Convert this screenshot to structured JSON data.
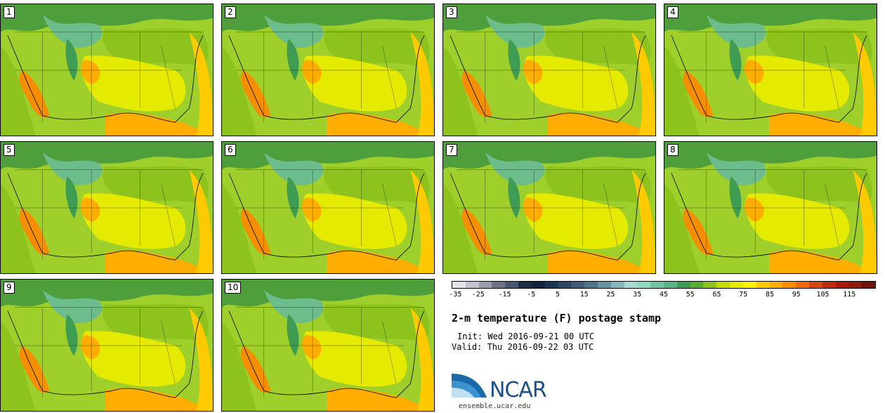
{
  "panels": [
    "1",
    "2",
    "3",
    "4",
    "5",
    "6",
    "7",
    "8",
    "9",
    "10"
  ],
  "colorbar": {
    "ticks": [
      "-35",
      "-25",
      "-15",
      "-5",
      "5",
      "15",
      "25",
      "35",
      "45",
      "55",
      "65",
      "75",
      "85",
      "95",
      "105",
      "115"
    ],
    "colors": [
      "#e3e3e9",
      "#c3c3cf",
      "#9c9caf",
      "#6e7488",
      "#4a5670",
      "#1c2d46",
      "#15243c",
      "#1e3350",
      "#2d4661",
      "#3d5b76",
      "#4f7389",
      "#6a93a2",
      "#89b6bb",
      "#a9dad4",
      "#93d8c0",
      "#74c4a0",
      "#58b484",
      "#3f9d53",
      "#5aab32",
      "#8ec31e",
      "#c4dd00",
      "#e4ea00",
      "#fff200",
      "#ffcb00",
      "#ffae00",
      "#f58f00",
      "#ee6a10",
      "#d64514",
      "#c02a0e",
      "#a51d0a",
      "#8c1b0d",
      "#6d150c"
    ]
  },
  "title": "2-m temperature (F) postage stamp",
  "init": "Init: Wed 2016-09-21 00 UTC",
  "valid": "Valid: Thu 2016-09-22 03 UTC",
  "logo_text": "NCAR",
  "website": "ensemble.ucar.edu"
}
